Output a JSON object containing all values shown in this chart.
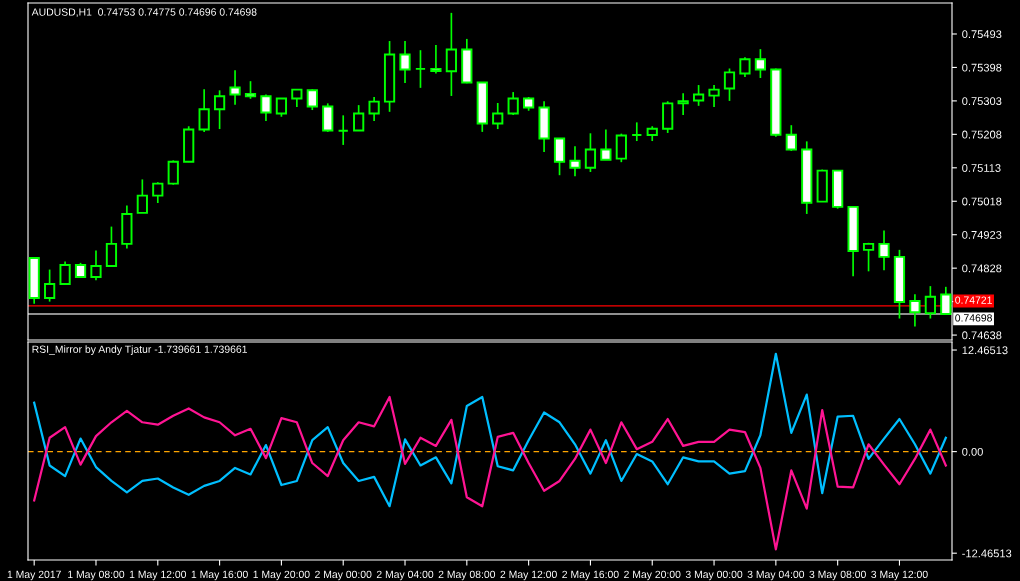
{
  "chart_data": [
    {
      "type": "candlestick",
      "title": "AUDUSD,H1  0.74753 0.74775 0.74696 0.74698",
      "color": "#00ff00",
      "ohlc": [
        [
          0.74857,
          0.74857,
          0.74727,
          0.74743
        ],
        [
          0.74743,
          0.74824,
          0.74733,
          0.74783
        ],
        [
          0.74783,
          0.74847,
          0.74783,
          0.74837
        ],
        [
          0.74837,
          0.74843,
          0.74803,
          0.74803
        ],
        [
          0.74803,
          0.74878,
          0.74794,
          0.74834
        ],
        [
          0.74834,
          0.74946,
          0.74834,
          0.74897
        ],
        [
          0.74897,
          0.75006,
          0.74884,
          0.74982
        ],
        [
          0.74985,
          0.7508,
          0.74985,
          0.75034
        ],
        [
          0.75034,
          0.75072,
          0.75013,
          0.75068
        ],
        [
          0.75068,
          0.75134,
          0.75065,
          0.7513
        ],
        [
          0.7513,
          0.75231,
          0.75129,
          0.75222
        ],
        [
          0.75222,
          0.75336,
          0.75215,
          0.75279
        ],
        [
          0.75279,
          0.75333,
          0.75223,
          0.75316
        ],
        [
          0.75341,
          0.7539,
          0.75292,
          0.75321
        ],
        [
          0.75323,
          0.75359,
          0.75309,
          0.75316
        ],
        [
          0.75316,
          0.75321,
          0.75246,
          0.7527
        ],
        [
          0.75267,
          0.7531,
          0.75258,
          0.7531
        ],
        [
          0.7531,
          0.75335,
          0.75286,
          0.75335
        ],
        [
          0.75333,
          0.75336,
          0.75277,
          0.75287
        ],
        [
          0.75287,
          0.75296,
          0.75215,
          0.75219
        ],
        [
          0.75218,
          0.75262,
          0.75178,
          0.75218
        ],
        [
          0.75219,
          0.75291,
          0.75219,
          0.75267
        ],
        [
          0.75267,
          0.75314,
          0.75246,
          0.75301
        ],
        [
          0.75301,
          0.75473,
          0.75272,
          0.75435
        ],
        [
          0.75435,
          0.75473,
          0.75354,
          0.75392
        ],
        [
          0.75394,
          0.75447,
          0.7534,
          0.75394
        ],
        [
          0.75394,
          0.75462,
          0.75381,
          0.75388
        ],
        [
          0.75387,
          0.75553,
          0.75317,
          0.75449
        ],
        [
          0.75449,
          0.75479,
          0.75353,
          0.75355
        ],
        [
          0.75355,
          0.75355,
          0.75215,
          0.75239
        ],
        [
          0.75239,
          0.75297,
          0.75223,
          0.75267
        ],
        [
          0.75267,
          0.75328,
          0.75263,
          0.7531
        ],
        [
          0.7531,
          0.75314,
          0.75275,
          0.75284
        ],
        [
          0.75284,
          0.75302,
          0.75158,
          0.75196
        ],
        [
          0.75196,
          0.75196,
          0.75092,
          0.7513
        ],
        [
          0.75133,
          0.75174,
          0.75089,
          0.75113
        ],
        [
          0.75113,
          0.75211,
          0.75101,
          0.75165
        ],
        [
          0.75165,
          0.75222,
          0.75136,
          0.75136
        ],
        [
          0.75139,
          0.7521,
          0.75129,
          0.75205
        ],
        [
          0.75206,
          0.75242,
          0.75189,
          0.75206
        ],
        [
          0.75206,
          0.75231,
          0.75189,
          0.75224
        ],
        [
          0.75224,
          0.75302,
          0.75212,
          0.75296
        ],
        [
          0.75296,
          0.75325,
          0.75263,
          0.75302
        ],
        [
          0.75304,
          0.75348,
          0.75289,
          0.75321
        ],
        [
          0.75318,
          0.75348,
          0.75286,
          0.75335
        ],
        [
          0.75338,
          0.75395,
          0.75303,
          0.75384
        ],
        [
          0.75381,
          0.75427,
          0.75371,
          0.75421
        ],
        [
          0.75421,
          0.7545,
          0.75368,
          0.75392
        ],
        [
          0.75392,
          0.75395,
          0.75201,
          0.75207
        ],
        [
          0.75207,
          0.75234,
          0.75161,
          0.75165
        ],
        [
          0.75165,
          0.75188,
          0.74982,
          0.75014
        ],
        [
          0.75017,
          0.75108,
          0.75017,
          0.75105
        ],
        [
          0.75105,
          0.75105,
          0.74997,
          0.75002
        ],
        [
          0.75002,
          0.75002,
          0.74805,
          0.74877
        ],
        [
          0.7488,
          0.749,
          0.74819,
          0.74897
        ],
        [
          0.74897,
          0.74935,
          0.74822,
          0.7486
        ],
        [
          0.7486,
          0.7488,
          0.74685,
          0.74732
        ],
        [
          0.74735,
          0.74754,
          0.74662,
          0.74703
        ],
        [
          0.747,
          0.74777,
          0.74685,
          0.74747
        ],
        [
          0.74753,
          0.74775,
          0.74696,
          0.74698
        ]
      ],
      "ylim": [
        0.74624,
        0.75581
      ],
      "yticks": [
        0.75493,
        0.75398,
        0.75303,
        0.75208,
        0.75113,
        0.75018,
        0.74923,
        0.74828,
        {
          "value": 0.74733,
          "label": null
        },
        0.74638
      ],
      "ref_lines": [
        {
          "axis": "y",
          "value": 0.74721,
          "label": "0.74721",
          "color": "#ff0000"
        },
        {
          "axis": "y",
          "value": 0.74698,
          "label": "0.74698",
          "color": "#c0c0c0"
        }
      ],
      "tick_labels": "y"
    },
    {
      "type": "line",
      "title": "RSI_Mirror by Andy Tjatur -1.739661 1.739661",
      "categories": [
        "1 May 2017",
        null,
        null,
        null,
        "1 May 08:00",
        null,
        null,
        null,
        "1 May 12:00",
        null,
        null,
        null,
        "1 May 16:00",
        null,
        null,
        null,
        "1 May 20:00",
        null,
        null,
        null,
        "2 May 00:00",
        null,
        null,
        null,
        "2 May 04:00",
        null,
        null,
        null,
        "2 May 08:00",
        null,
        null,
        null,
        "2 May 12:00",
        null,
        null,
        null,
        "2 May 16:00",
        null,
        null,
        null,
        "2 May 20:00",
        null,
        null,
        null,
        "3 May 00:00",
        null,
        null,
        null,
        "3 May 04:00",
        null,
        null,
        null,
        "3 May 08:00",
        null,
        null,
        null,
        "3 May 12:00",
        null,
        null,
        null
      ],
      "series": [
        {
          "color": "#00bfff",
          "values": [
            6.0,
            -1.7,
            -3.0,
            1.6,
            -1.9,
            -3.6,
            -5.0,
            -3.6,
            -3.3,
            -4.4,
            -5.3,
            -4.2,
            -3.6,
            -2.0,
            -2.8,
            0.8,
            -4.1,
            -3.6,
            1.4,
            3.0,
            -1.4,
            -3.6,
            -3.1,
            -6.7,
            1.5,
            -1.7,
            -0.7,
            -3.9,
            5.6,
            6.7,
            -1.8,
            -2.3,
            1.4,
            4.8,
            3.6,
            0.9,
            -2.7,
            1.4,
            -3.6,
            -0.3,
            -1.2,
            -4.0,
            -0.7,
            -1.2,
            -1.2,
            -2.7,
            -2.4,
            2.0,
            12.0,
            2.3,
            7.0,
            -5.1,
            4.3,
            4.4,
            -0.9,
            1.6,
            4.0,
            0.9,
            -2.7,
            1.7
          ]
        },
        {
          "color": "#ff1493",
          "values": [
            -6.0,
            1.7,
            3.0,
            -1.6,
            1.9,
            3.6,
            5.0,
            3.6,
            3.3,
            4.4,
            5.3,
            4.2,
            3.6,
            2.0,
            2.8,
            -0.8,
            4.1,
            3.6,
            -1.4,
            -3.0,
            1.4,
            3.6,
            3.1,
            6.7,
            -1.5,
            1.7,
            0.7,
            3.9,
            -5.6,
            -6.7,
            1.8,
            2.3,
            -1.4,
            -4.8,
            -3.6,
            -0.9,
            2.7,
            -1.4,
            3.6,
            0.3,
            1.2,
            4.0,
            0.7,
            1.2,
            1.2,
            2.7,
            2.4,
            -2.0,
            -12.0,
            -2.3,
            -7.0,
            5.1,
            -4.3,
            -4.4,
            0.9,
            -1.6,
            -4.0,
            -0.9,
            2.7,
            -1.7
          ]
        }
      ],
      "ylim": [
        -13.3,
        13.45
      ],
      "yticks": [
        12.46513,
        {
          "value": 0,
          "label": "0.00"
        },
        -12.46513
      ],
      "ref_lines": [
        {
          "axis": "y",
          "value": 0,
          "color": "#ffa500",
          "line_style": "dashed"
        }
      ]
    }
  ]
}
